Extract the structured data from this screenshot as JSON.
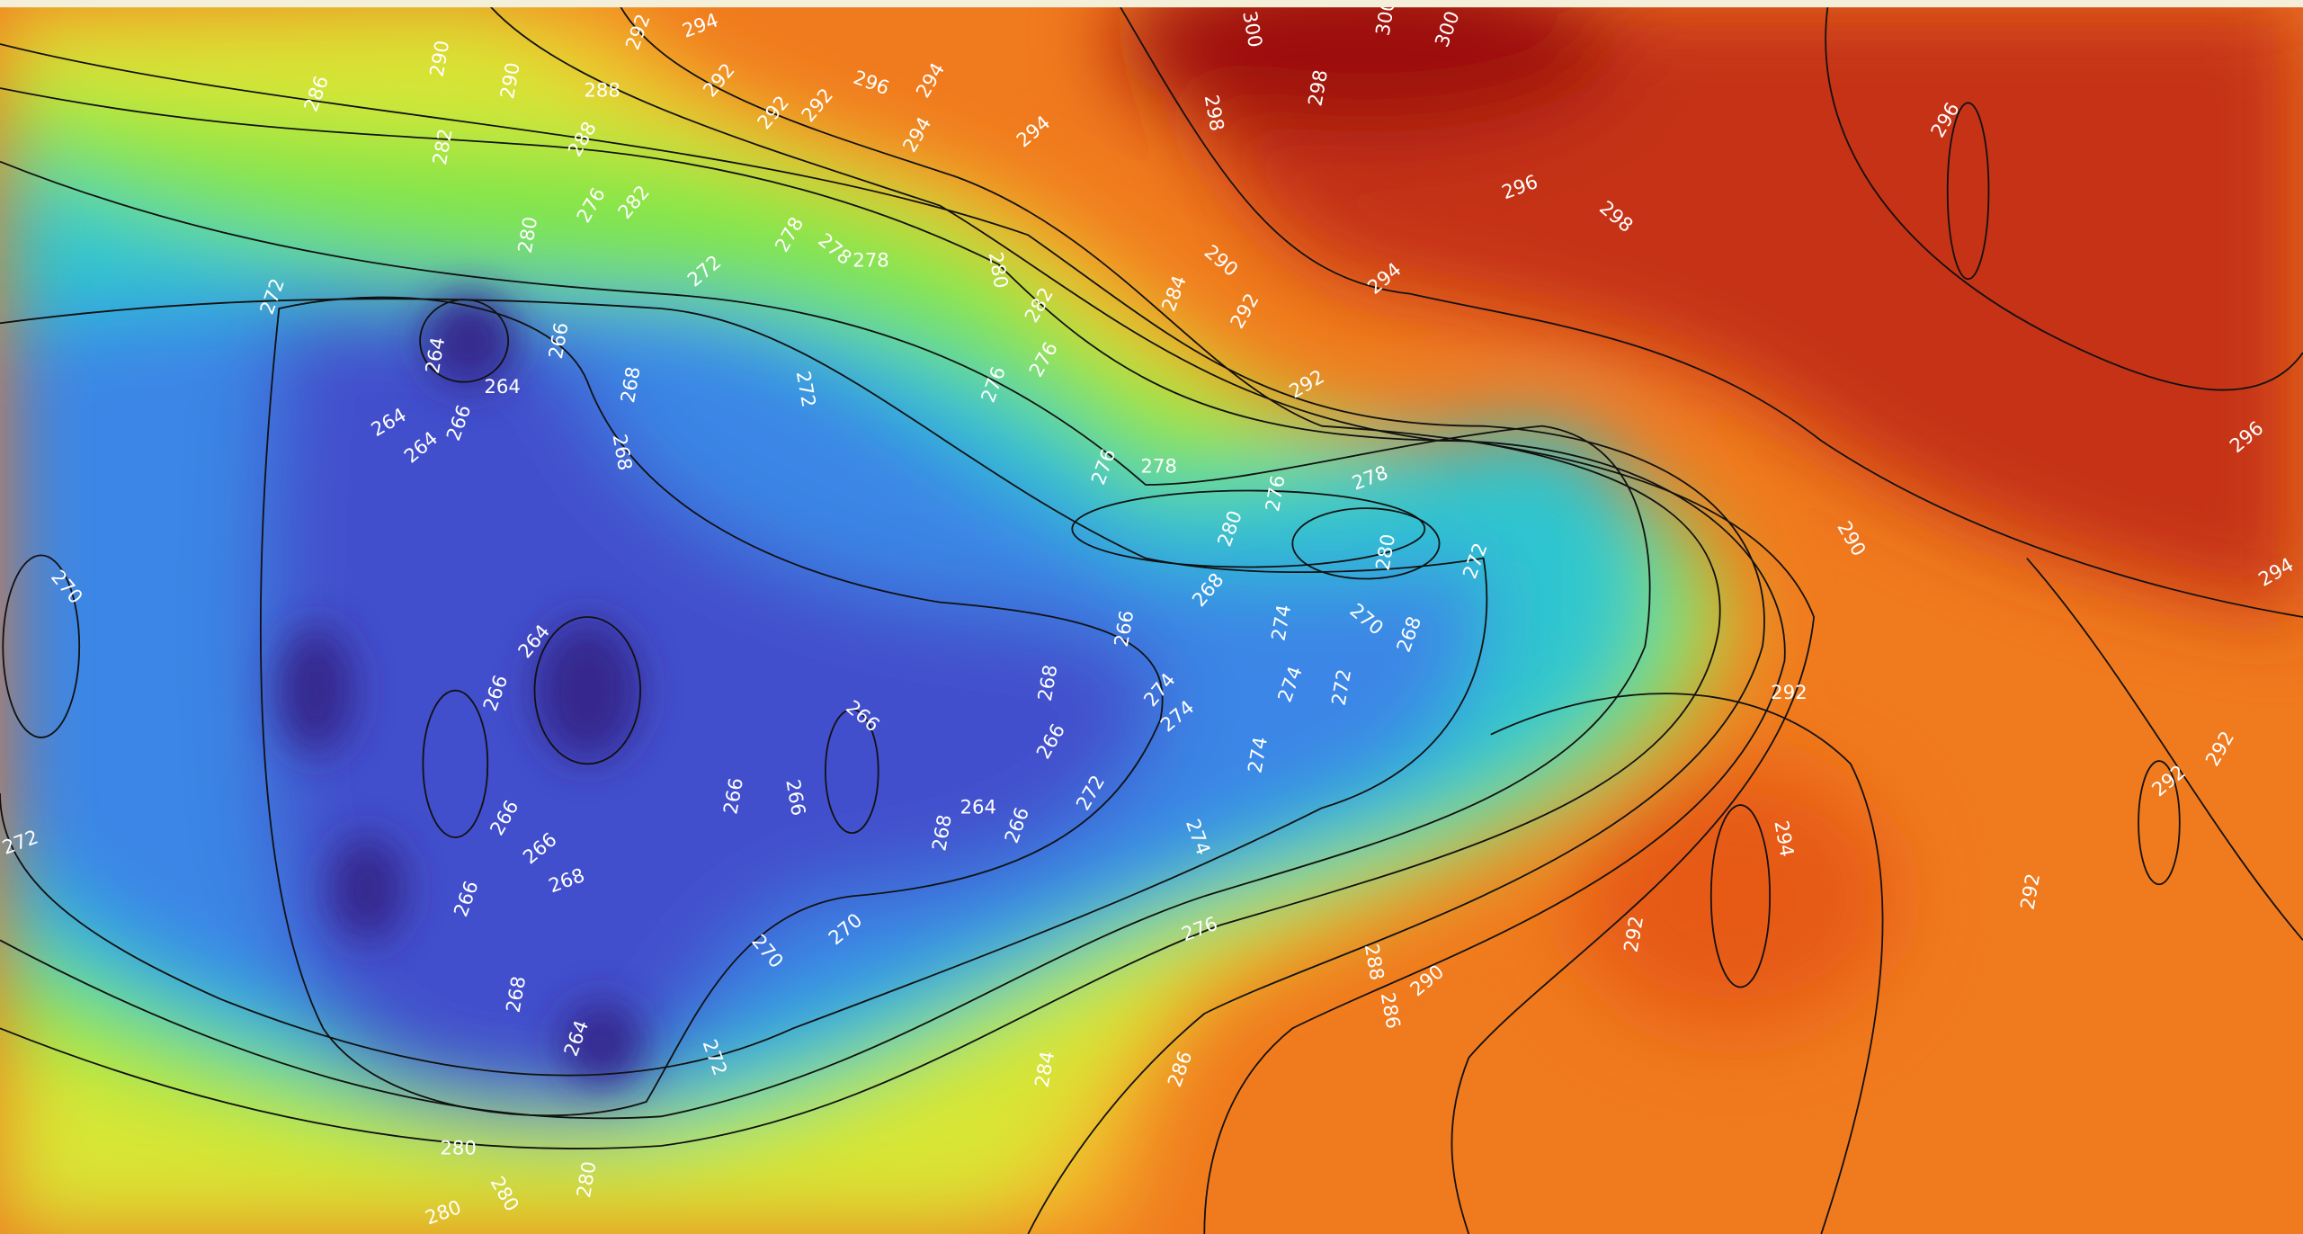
{
  "contour_labels": [
    294,
    292,
    300,
    300,
    300,
    290,
    290,
    286,
    288,
    292,
    296,
    294,
    292,
    292,
    294,
    294,
    298,
    298,
    296,
    288,
    282,
    296,
    298,
    276,
    282,
    280,
    272,
    278,
    278,
    278,
    280,
    290,
    294,
    284,
    292,
    282,
    272,
    264,
    266,
    268,
    272,
    276,
    276,
    292,
    264,
    264,
    266,
    264,
    268,
    278,
    276,
    278,
    276,
    296,
    290,
    280,
    280,
    272,
    294,
    270,
    268,
    274,
    270,
    268,
    266,
    264,
    266,
    268,
    274,
    272,
    274,
    274,
    292,
    266,
    292,
    266,
    274,
    292,
    272,
    266,
    266,
    264,
    266,
    266,
    266,
    268,
    274,
    294,
    268,
    266,
    292,
    270,
    276,
    292,
    270,
    288,
    290,
    268,
    286,
    264,
    272,
    284,
    286,
    272,
    280,
    280,
    280,
    280
  ]
}
